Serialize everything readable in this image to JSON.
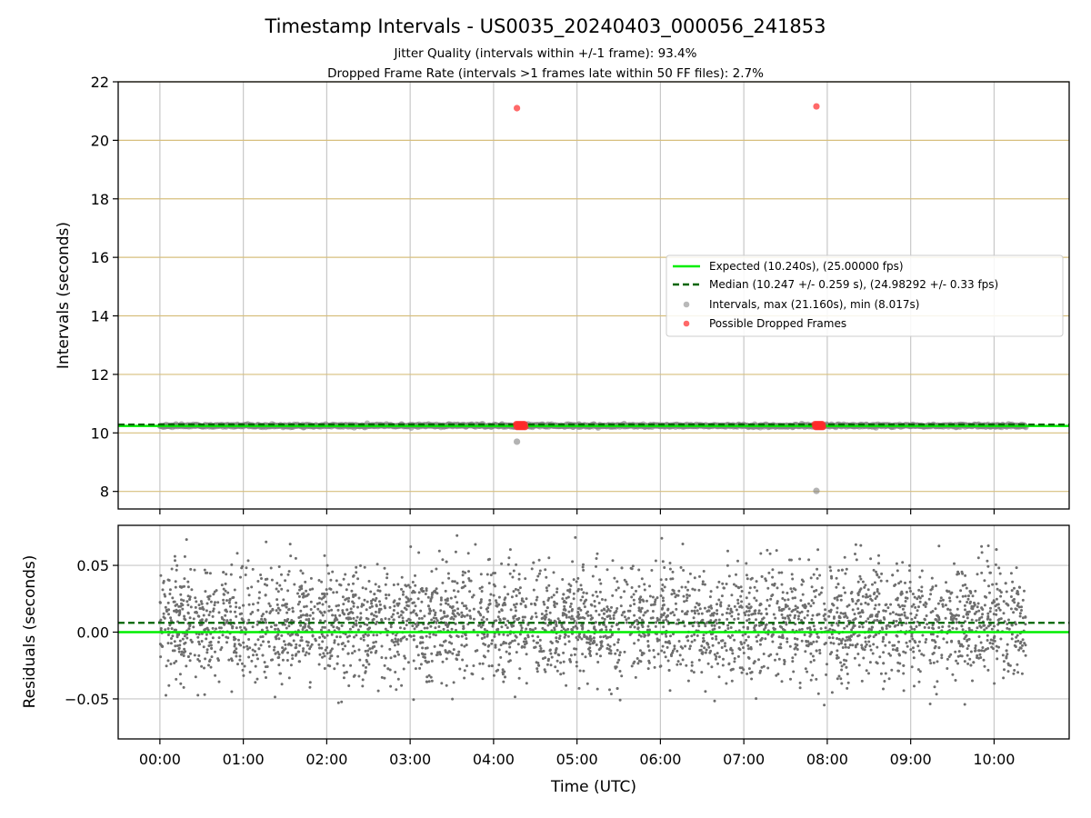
{
  "title": "Timestamp Intervals - US0035_20240403_000056_241853",
  "subtitle_line1": "Jitter Quality (intervals within +/-1 frame): 93.4%",
  "subtitle_line2": "Dropped Frame Rate (intervals >1 frames late within 50 FF files): 2.7%",
  "colors": {
    "expected": "#00ee00",
    "median": "#006400",
    "intervals": "#808080",
    "dropped": "#ff2a2a",
    "yellow_grid": "#d7bf7d",
    "gray_grid": "#c8c8c8"
  },
  "chart_data": [
    {
      "type": "scatter",
      "name": "top-panel",
      "ylabel": "Intervals (seconds)",
      "ylim": [
        7.4,
        22
      ],
      "xlim_hours": [
        -0.5,
        10.9
      ],
      "yticks": [
        8,
        10,
        12,
        14,
        16,
        18,
        20,
        22
      ],
      "ytick_labels": [
        "8",
        "10",
        "12",
        "14",
        "16",
        "18",
        "20",
        "22"
      ],
      "grid": true,
      "legend_position": "center-right",
      "lines": [
        {
          "name": "expected",
          "label": "Expected (10.240s), (25.00000 fps)",
          "y": 10.24,
          "style": "solid"
        },
        {
          "name": "median",
          "label": "Median (10.247 +/- 0.259 s), (24.98292 +/- 0.33 fps)",
          "y": 10.247,
          "style": "dashed"
        }
      ],
      "series": [
        {
          "name": "intervals",
          "label": "Intervals, max (21.160s), min (8.017s)",
          "x_range_hours": [
            0.0,
            10.38
          ],
          "y": 10.247,
          "outliers": [
            [
              4.28,
              9.7
            ],
            [
              7.87,
              8.017
            ]
          ]
        },
        {
          "name": "dropped",
          "label": "Possible Dropped Frames",
          "points": [
            [
              4.28,
              21.1
            ],
            [
              7.87,
              21.16
            ]
          ],
          "clusters": [
            {
              "x_range": [
                4.27,
                4.38
              ],
              "y": 10.25
            },
            {
              "x_range": [
                7.85,
                7.95
              ],
              "y": 10.25
            }
          ]
        }
      ]
    },
    {
      "type": "scatter",
      "name": "bottom-panel",
      "ylabel": "Residuals (seconds)",
      "xlabel": "Time (UTC)",
      "ylim": [
        -0.08,
        0.08
      ],
      "xlim_hours": [
        -0.5,
        10.9
      ],
      "yticks": [
        -0.05,
        0.0,
        0.05
      ],
      "ytick_labels": [
        "−0.05",
        "0.00",
        "0.05"
      ],
      "xticks_hours": [
        0,
        1,
        2,
        3,
        4,
        5,
        6,
        7,
        8,
        9,
        10
      ],
      "xtick_labels": [
        "00:00",
        "01:00",
        "02:00",
        "03:00",
        "04:00",
        "05:00",
        "06:00",
        "07:00",
        "08:00",
        "09:00",
        "10:00"
      ],
      "grid": true,
      "lines": [
        {
          "name": "expected-residual",
          "y": 0.0,
          "style": "solid"
        },
        {
          "name": "median-residual",
          "y": 0.007,
          "style": "dashed"
        }
      ],
      "series": [
        {
          "name": "residuals",
          "x_range_hours": [
            0.0,
            10.38
          ],
          "count": 3600,
          "spread": [
            -0.056,
            0.073
          ],
          "center": 0.007
        }
      ]
    }
  ]
}
